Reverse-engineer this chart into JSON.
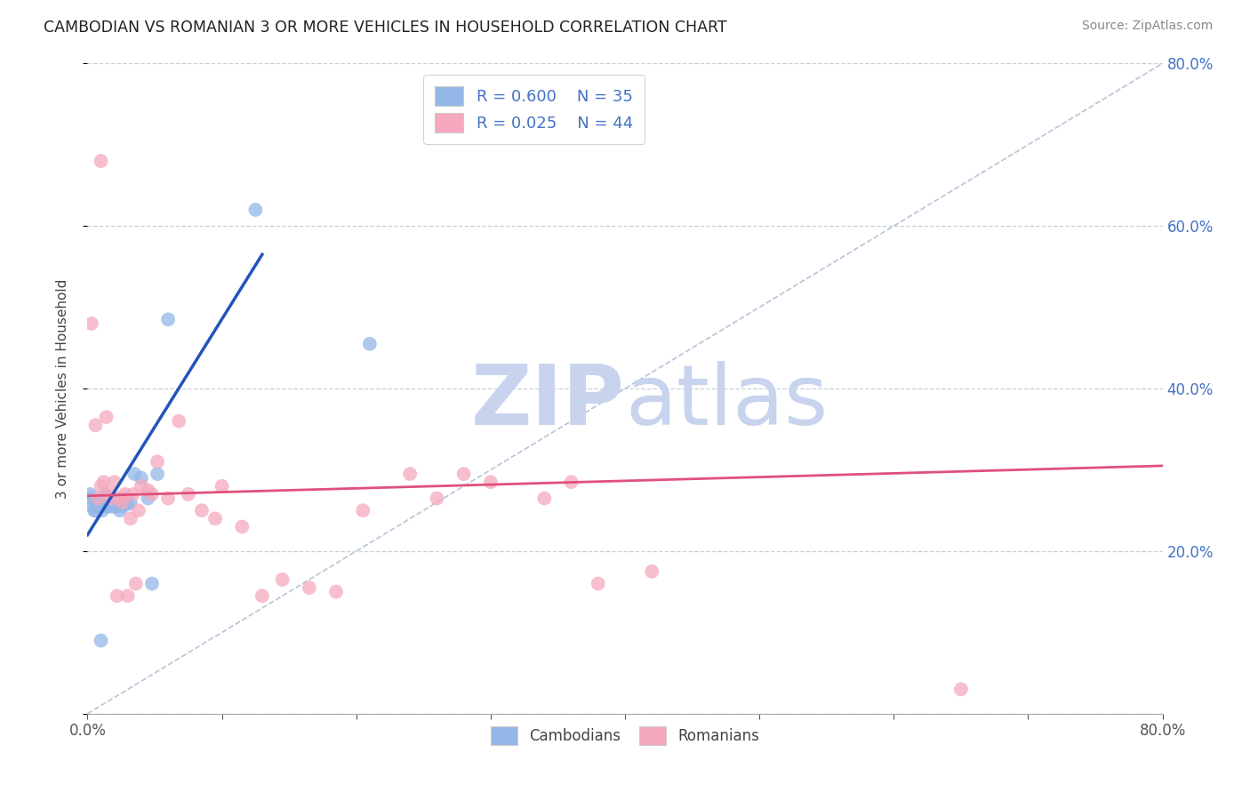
{
  "title": "CAMBODIAN VS ROMANIAN 3 OR MORE VEHICLES IN HOUSEHOLD CORRELATION CHART",
  "source": "Source: ZipAtlas.com",
  "ylabel": "3 or more Vehicles in Household",
  "xlim": [
    0.0,
    0.8
  ],
  "ylim": [
    0.0,
    0.8
  ],
  "cambodian_color": "#93b8e8",
  "romanian_color": "#f5a8be",
  "cambodian_line_color": "#2255bb",
  "romanian_line_color": "#e0507a",
  "ref_line_color": "#b8c4d8",
  "watermark_zip_color": "#c8d4ee",
  "watermark_atlas_color": "#c8d4ee",
  "right_axis_color": "#4472c4",
  "cambodian_x": [
    0.002,
    0.003,
    0.004,
    0.005,
    0.006,
    0.007,
    0.008,
    0.009,
    0.01,
    0.01,
    0.011,
    0.012,
    0.013,
    0.014,
    0.015,
    0.016,
    0.017,
    0.018,
    0.019,
    0.02,
    0.021,
    0.022,
    0.024,
    0.026,
    0.028,
    0.03,
    0.032,
    0.035,
    0.04,
    0.045,
    0.048,
    0.052,
    0.06,
    0.125,
    0.21
  ],
  "cambodian_y": [
    0.27,
    0.265,
    0.255,
    0.25,
    0.25,
    0.255,
    0.26,
    0.255,
    0.26,
    0.09,
    0.25,
    0.265,
    0.27,
    0.255,
    0.265,
    0.255,
    0.258,
    0.26,
    0.255,
    0.26,
    0.255,
    0.255,
    0.25,
    0.255,
    0.265,
    0.258,
    0.26,
    0.295,
    0.29,
    0.265,
    0.16,
    0.295,
    0.485,
    0.62,
    0.455
  ],
  "romanian_x": [
    0.003,
    0.006,
    0.008,
    0.01,
    0.012,
    0.014,
    0.016,
    0.018,
    0.02,
    0.022,
    0.024,
    0.026,
    0.028,
    0.03,
    0.032,
    0.034,
    0.036,
    0.038,
    0.04,
    0.045,
    0.048,
    0.052,
    0.06,
    0.068,
    0.075,
    0.085,
    0.095,
    0.1,
    0.115,
    0.13,
    0.145,
    0.165,
    0.185,
    0.205,
    0.24,
    0.26,
    0.28,
    0.3,
    0.34,
    0.36,
    0.38,
    0.42,
    0.65,
    0.01
  ],
  "romanian_y": [
    0.48,
    0.355,
    0.265,
    0.28,
    0.285,
    0.365,
    0.27,
    0.265,
    0.285,
    0.145,
    0.265,
    0.26,
    0.27,
    0.145,
    0.24,
    0.27,
    0.16,
    0.25,
    0.28,
    0.275,
    0.27,
    0.31,
    0.265,
    0.36,
    0.27,
    0.25,
    0.24,
    0.28,
    0.23,
    0.145,
    0.165,
    0.155,
    0.15,
    0.25,
    0.295,
    0.265,
    0.295,
    0.285,
    0.265,
    0.285,
    0.16,
    0.175,
    0.03,
    0.68
  ],
  "cam_trend_x0": 0.0,
  "cam_trend_y0": 0.22,
  "cam_trend_x1": 0.13,
  "cam_trend_y1": 0.565,
  "rom_trend_x0": 0.0,
  "rom_trend_y0": 0.268,
  "rom_trend_x1": 0.8,
  "rom_trend_y1": 0.305
}
